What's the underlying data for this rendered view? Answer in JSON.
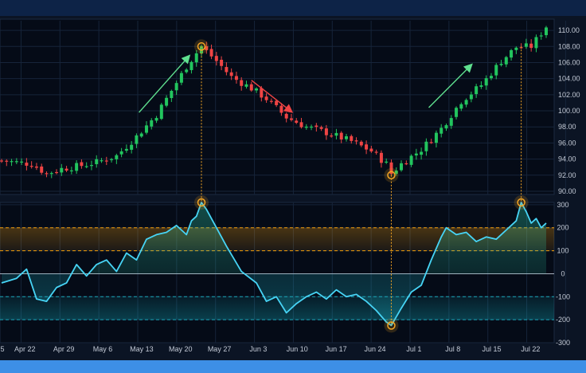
{
  "chart_data": {
    "type": "candlestick",
    "title": "",
    "price_panel": {
      "ylim": [
        89.6,
        111.2
      ],
      "yticks": [
        90,
        92,
        94,
        96,
        98,
        100,
        102,
        104,
        106,
        108,
        110
      ],
      "ytick_labels": [
        "90.00",
        "92.00",
        "94.00",
        "96.00",
        "98.00",
        "100.00",
        "102.00",
        "104.00",
        "106.00",
        "108.00",
        "110.00"
      ],
      "close_path": [
        [
          0,
          93.8
        ],
        [
          6,
          93.4
        ],
        [
          9,
          92.2
        ],
        [
          12,
          92.8
        ],
        [
          16,
          93.2
        ],
        [
          19,
          93.6
        ],
        [
          23,
          94.4
        ],
        [
          27,
          96.8
        ],
        [
          31,
          99.5
        ],
        [
          34,
          102.5
        ],
        [
          37,
          105.5
        ],
        [
          39,
          107.2
        ],
        [
          40,
          108.0
        ],
        [
          43,
          106.2
        ],
        [
          46,
          104.2
        ],
        [
          50,
          102.8
        ],
        [
          53,
          101.5
        ],
        [
          57,
          99.2
        ],
        [
          61,
          98.0
        ],
        [
          65,
          97.3
        ],
        [
          70,
          96.2
        ],
        [
          74,
          95.0
        ],
        [
          77,
          93.4
        ],
        [
          78,
          92.2
        ],
        [
          80,
          93.4
        ],
        [
          84,
          95.2
        ],
        [
          88,
          97.8
        ],
        [
          92,
          101.2
        ],
        [
          96,
          103.2
        ],
        [
          100,
          106.2
        ],
        [
          103,
          107.9
        ],
        [
          106,
          108.0
        ],
        [
          109,
          110.5
        ]
      ],
      "peak_marker": {
        "index": 40,
        "value": 108.0
      },
      "trough_marker": {
        "index": 78,
        "value": 92.0
      },
      "late_marker": {
        "index": 104,
        "value": 108.0
      },
      "grid": true
    },
    "oscillator_panel": {
      "ylim": [
        -300,
        310
      ],
      "yticks": [
        300,
        200,
        100,
        0,
        -100,
        -200,
        -300
      ],
      "ytick_labels": [
        "300",
        "200",
        "100",
        "0",
        "-100",
        "-200",
        "-300"
      ],
      "overbought_band": [
        100,
        200
      ],
      "oversold_band": [
        -200,
        -100
      ],
      "path": [
        [
          0,
          -40
        ],
        [
          3,
          -20
        ],
        [
          5,
          20
        ],
        [
          7,
          -110
        ],
        [
          9,
          -120
        ],
        [
          11,
          -60
        ],
        [
          13,
          -40
        ],
        [
          15,
          40
        ],
        [
          17,
          -10
        ],
        [
          19,
          40
        ],
        [
          21,
          60
        ],
        [
          23,
          10
        ],
        [
          25,
          90
        ],
        [
          27,
          60
        ],
        [
          29,
          150
        ],
        [
          31,
          170
        ],
        [
          33,
          180
        ],
        [
          35,
          210
        ],
        [
          37,
          170
        ],
        [
          38,
          230
        ],
        [
          39,
          250
        ],
        [
          40,
          310
        ],
        [
          41,
          280
        ],
        [
          43,
          200
        ],
        [
          45,
          120
        ],
        [
          48,
          10
        ],
        [
          51,
          -40
        ],
        [
          53,
          -120
        ],
        [
          55,
          -100
        ],
        [
          57,
          -170
        ],
        [
          59,
          -130
        ],
        [
          61,
          -100
        ],
        [
          63,
          -80
        ],
        [
          65,
          -110
        ],
        [
          67,
          -70
        ],
        [
          69,
          -100
        ],
        [
          71,
          -90
        ],
        [
          73,
          -120
        ],
        [
          75,
          -160
        ],
        [
          77,
          -210
        ],
        [
          78,
          -225
        ],
        [
          80,
          -150
        ],
        [
          82,
          -80
        ],
        [
          84,
          -50
        ],
        [
          86,
          60
        ],
        [
          88,
          160
        ],
        [
          89,
          200
        ],
        [
          91,
          170
        ],
        [
          93,
          180
        ],
        [
          95,
          140
        ],
        [
          97,
          160
        ],
        [
          99,
          150
        ],
        [
          101,
          190
        ],
        [
          103,
          230
        ],
        [
          104,
          310
        ],
        [
          105,
          270
        ],
        [
          106,
          220
        ],
        [
          107,
          240
        ],
        [
          108,
          200
        ],
        [
          109,
          220
        ]
      ],
      "peak_markers": [
        {
          "index": 40,
          "value": 310
        },
        {
          "index": 104,
          "value": 310
        }
      ],
      "trough_marker": {
        "index": 78,
        "value": -225
      },
      "grid": true
    },
    "x_axis": {
      "n": 110,
      "tick_labels": [
        "5",
        "Apr 22",
        "Apr 29",
        "May 6",
        "May 13",
        "May 20",
        "May 27",
        "Jun 3",
        "Jun 10",
        "Jun 17",
        "Jun 24",
        "Jul 1",
        "Jul 8",
        "Jul 15",
        "Jul 22"
      ]
    },
    "trend_arrows": [
      "up",
      "down",
      "up"
    ],
    "colors": {
      "up": "#22c55e",
      "down": "#ef4444",
      "oscillator": "#47d4f5",
      "marker": "#f5a623",
      "band_top": "#f59e0b",
      "band_bottom": "#1aa7b8",
      "background": "#050b17",
      "grid": "#16243a"
    }
  }
}
